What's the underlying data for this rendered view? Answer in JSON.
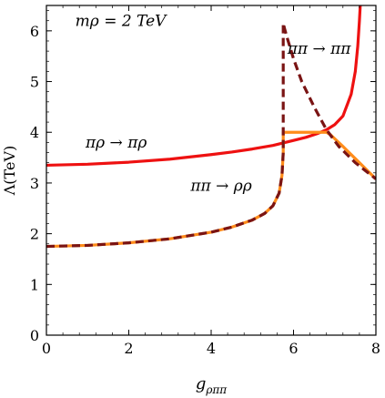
{
  "chart_data": {
    "type": "line",
    "xlabel": "gρππ",
    "ylabel": "Λ(TeV)",
    "xlim": [
      0,
      8
    ],
    "ylim": [
      0,
      6.5
    ],
    "xticks": [
      0,
      2,
      4,
      6,
      8
    ],
    "yticks": [
      0,
      1,
      2,
      3,
      4,
      5,
      6
    ],
    "grid": false,
    "annotations": [
      {
        "text": "mρ = 2 TeV",
        "x": 0.7,
        "y": 6.1
      },
      {
        "text": "ππ → ππ",
        "x": 5.85,
        "y": 5.55
      },
      {
        "text": "πρ → πρ",
        "x": 0.95,
        "y": 3.7
      },
      {
        "text": "ππ → ρρ",
        "x": 3.5,
        "y": 2.85
      }
    ],
    "series": [
      {
        "color": "#ee1111",
        "style": "solid",
        "x": [
          0,
          1,
          2,
          3,
          4,
          4.5,
          5,
          5.5,
          6,
          6.3,
          6.6,
          6.8,
          7.0,
          7.2,
          7.4,
          7.5,
          7.56,
          7.6,
          7.62
        ],
        "y": [
          3.35,
          3.37,
          3.41,
          3.47,
          3.56,
          3.61,
          3.67,
          3.74,
          3.84,
          3.9,
          3.98,
          4.05,
          4.15,
          4.32,
          4.75,
          5.2,
          5.7,
          6.2,
          6.5
        ]
      },
      {
        "color": "#ff8c1a",
        "style": "solid",
        "x": [
          0,
          1,
          2,
          3,
          4,
          4.5,
          5,
          5.3,
          5.5,
          5.65,
          5.72,
          5.75,
          5.75,
          6.3,
          6.8,
          6.9,
          7.2,
          7.5,
          8.0
        ],
        "y": [
          1.75,
          1.77,
          1.82,
          1.9,
          2.03,
          2.13,
          2.27,
          2.4,
          2.55,
          2.8,
          3.15,
          3.6,
          4.0,
          4.0,
          4.0,
          3.95,
          3.72,
          3.48,
          3.08
        ]
      },
      {
        "color": "#7a1414",
        "style": "dashed",
        "x": [
          0,
          1,
          2,
          3,
          4,
          4.5,
          5,
          5.3,
          5.5,
          5.65,
          5.72,
          5.75,
          5.75,
          5.78,
          5.85,
          6.0,
          6.2,
          6.5,
          6.8,
          7.1,
          7.5,
          8.0
        ],
        "y": [
          1.75,
          1.77,
          1.82,
          1.9,
          2.03,
          2.13,
          2.27,
          2.4,
          2.55,
          2.8,
          3.15,
          3.6,
          6.15,
          6.05,
          5.85,
          5.45,
          5.0,
          4.5,
          4.05,
          3.72,
          3.4,
          3.08
        ]
      }
    ]
  }
}
